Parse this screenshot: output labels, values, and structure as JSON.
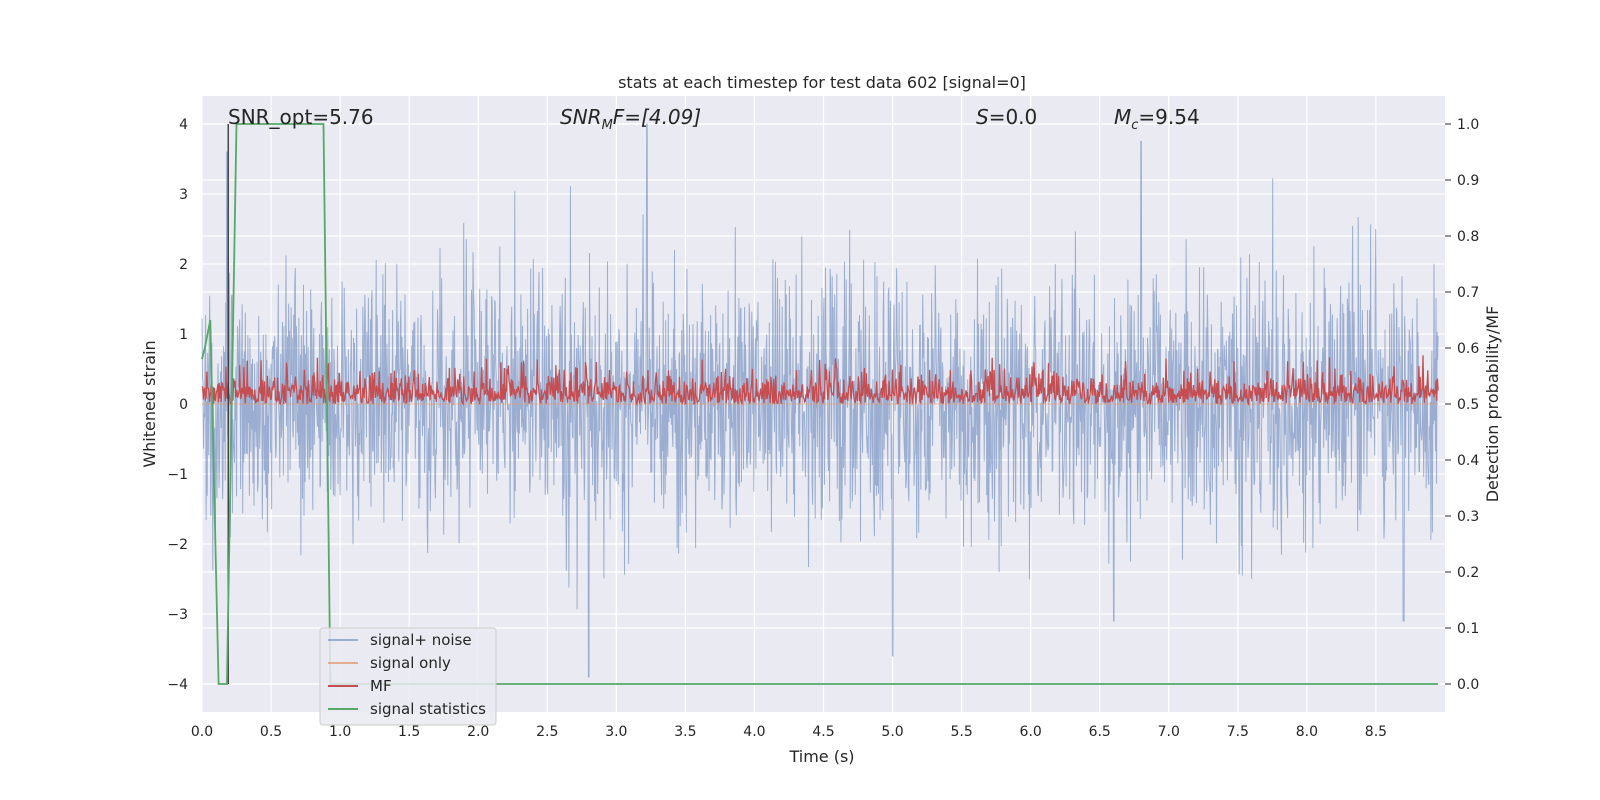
{
  "chart_data": {
    "type": "line",
    "title": "stats at each timestep for test data 602 [signal=0]",
    "xlabel": "Time (s)",
    "ylabel_left": "Whitened strain",
    "ylabel_right": "Detection probability/MF",
    "xlim": [
      0.0,
      9.0
    ],
    "ylim_left": [
      -4.4,
      4.4
    ],
    "ylim_right": [
      -0.05,
      1.05
    ],
    "xticks": [
      "0.0",
      "0.5",
      "1.0",
      "1.5",
      "2.0",
      "2.5",
      "3.0",
      "3.5",
      "4.0",
      "4.5",
      "5.0",
      "5.5",
      "6.0",
      "6.5",
      "7.0",
      "7.5",
      "8.0",
      "8.5"
    ],
    "yticks_left": [
      "4",
      "3",
      "2",
      "1",
      "0",
      "−1",
      "−2",
      "−3",
      "−4"
    ],
    "yticks_right": [
      "1.0",
      "0.9",
      "0.8",
      "0.7",
      "0.6",
      "0.5",
      "0.4",
      "0.3",
      "0.2",
      "0.1",
      "0.0"
    ],
    "grid": true,
    "annotations": {
      "snr_opt": "SNR_opt=5.76",
      "snr_mf_base": "SNR",
      "snr_mf_sub": "M",
      "snr_mf_rest": "F=[4.09]",
      "s_italic": "S",
      "s_rest": "=0.0",
      "mc_base": "M",
      "mc_sub": "c",
      "mc_rest": "=9.54"
    },
    "series": [
      {
        "name": "signal+ noise",
        "color": "#4c72b0",
        "axis": "left",
        "description": "whitened strain noise, approx gaussian, sigma ~1, peaks ~ +4.0 near t=3.2 and -3.9 near t=2.8",
        "sigma": 1.0,
        "peaks": [
          [
            0.18,
            3.6
          ],
          [
            2.8,
            -3.9
          ],
          [
            3.22,
            4.0
          ],
          [
            5.0,
            -3.6
          ],
          [
            6.8,
            3.75
          ],
          [
            6.6,
            -3.1
          ],
          [
            8.7,
            -3.1
          ]
        ]
      },
      {
        "name": "signal only",
        "color": "#dd8452",
        "axis": "left",
        "values_description": "zero (no signal)"
      },
      {
        "name": "MF",
        "color": "#c44e52",
        "axis": "right",
        "description": "matched filter output, fluctuates between ~0.5 and ~0.58 with occasional peaks ~0.6",
        "baseline": 0.5,
        "typical_max": 0.58
      },
      {
        "name": "signal statistics",
        "color": "#55a868",
        "axis": "right",
        "x": [
          0.0,
          0.02,
          0.06,
          0.12,
          0.18,
          0.25,
          0.88,
          0.93,
          9.0
        ],
        "y": [
          0.58,
          0.6,
          0.65,
          0.0,
          0.0,
          1.0,
          1.0,
          0.0,
          0.0
        ]
      }
    ],
    "vertical_marker": {
      "color": "#3b3b3b",
      "x": 0.19,
      "y": [
        -4.0,
        4.0
      ]
    },
    "legend": {
      "placement": "lower-left",
      "entries": [
        "signal+ noise",
        "signal only",
        "MF",
        "signal statistics"
      ]
    }
  }
}
